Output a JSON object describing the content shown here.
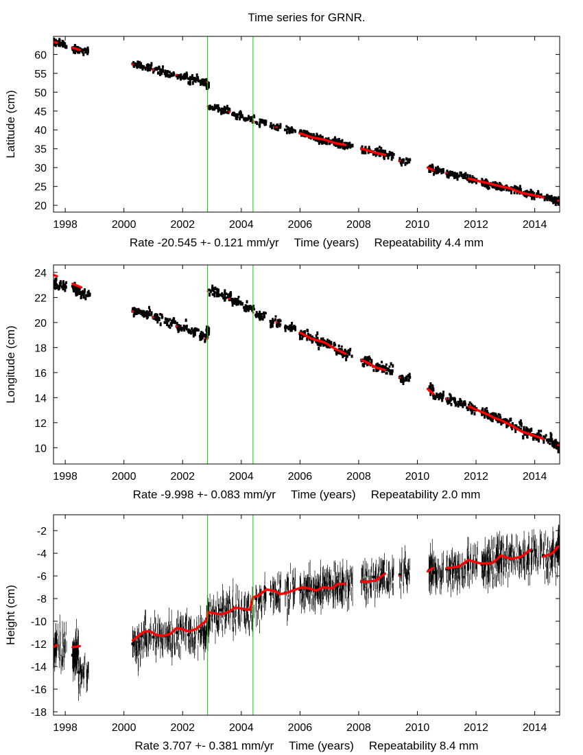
{
  "title": "Time series for GRNR.",
  "colors": {
    "data": "#000000",
    "model": "#ff0000",
    "breaks": "#00cc00",
    "frame": "#000000"
  },
  "chart_data": [
    {
      "type": "scatter",
      "ylabel": "Latitude (cm)",
      "xlabel": "Time (years)",
      "rate_text": "Rate -20.545 +- 0.121 mm/yr",
      "repeat_text": "Repeatability 4.4 mm",
      "xlim": [
        1997.6,
        2014.85
      ],
      "ylim": [
        18.2,
        64.8
      ],
      "xticks": [
        1998,
        2000,
        2002,
        2004,
        2006,
        2008,
        2010,
        2012,
        2014
      ],
      "yticks": [
        20,
        25,
        30,
        35,
        40,
        45,
        50,
        55,
        60
      ],
      "breaks": [
        2002.85,
        2004.4
      ],
      "series": [
        {
          "name": "observations",
          "x": [
            1997.6,
            1997.7,
            1998.25,
            1998.35,
            1998.45,
            2000.3,
            2000.6,
            2001.0,
            2001.4,
            2001.8,
            2002.2,
            2002.6,
            2002.82,
            2002.9,
            2003.3,
            2003.7,
            2004.1,
            2004.5,
            2005.0,
            2005.5,
            2006.0,
            2006.3,
            2006.6,
            2006.85,
            2007.2,
            2007.45,
            2008.1,
            2008.5,
            2008.85,
            2009.4,
            2010.4,
            2010.55,
            2011.0,
            2011.3,
            2011.7,
            2012.2,
            2012.4,
            2012.7,
            2012.85,
            2013.2,
            2013.6,
            2013.9,
            2014.3,
            2014.6,
            2014.8
          ],
          "values": [
            63.3,
            63.0,
            61.7,
            61.4,
            61.1,
            57.5,
            56.8,
            56.0,
            55.0,
            54.3,
            53.6,
            52.9,
            51.8,
            46.2,
            45.3,
            44.1,
            42.9,
            42.0,
            40.9,
            40.0,
            39.2,
            38.5,
            37.6,
            37.2,
            36.5,
            36.0,
            35.0,
            34.2,
            33.5,
            31.8,
            30.1,
            29.2,
            28.5,
            27.9,
            27.1,
            26.2,
            25.6,
            25.1,
            24.8,
            24.3,
            23.2,
            22.8,
            22.2,
            21.5,
            21.2
          ]
        },
        {
          "name": "model",
          "x": [
            1997.6,
            1997.72,
            1998.25,
            1998.5,
            2000.3,
            2001.0,
            2001.8,
            2002.84,
            2002.86,
            2003.6,
            2004.4,
            2005.2,
            2006.0,
            2006.4,
            2006.85,
            2007.2,
            2007.55,
            2008.1,
            2008.3,
            2008.6,
            2008.9,
            2009.4,
            2010.35,
            2010.55,
            2011.0,
            2011.75,
            2012.15,
            2012.45,
            2012.6,
            2012.85,
            2013.1,
            2013.2,
            2013.55,
            2013.95,
            2014.3,
            2014.8
          ],
          "values": [
            63.3,
            63.1,
            61.8,
            61.2,
            57.4,
            56.0,
            54.6,
            52.6,
            46.2,
            44.8,
            42.3,
            40.7,
            39.1,
            38.0,
            37.4,
            36.5,
            36.0,
            35.0,
            34.6,
            33.9,
            33.4,
            31.8,
            30.0,
            29.3,
            28.6,
            27.1,
            26.3,
            25.8,
            25.5,
            25.0,
            24.6,
            24.4,
            23.3,
            22.7,
            22.1,
            21.2
          ]
        }
      ]
    },
    {
      "type": "scatter",
      "ylabel": "Longitude (cm)",
      "xlabel": "Time (years)",
      "rate_text": "Rate -9.998 +- 0.083 mm/yr",
      "repeat_text": "Repeatability 2.0 mm",
      "xlim": [
        1997.6,
        2014.85
      ],
      "ylim": [
        8.7,
        24.6
      ],
      "xticks": [
        1998,
        2000,
        2002,
        2004,
        2006,
        2008,
        2010,
        2012,
        2014
      ],
      "yticks": [
        10,
        12,
        14,
        16,
        18,
        20,
        22,
        24
      ],
      "breaks": [
        2002.85,
        2004.4
      ],
      "series": [
        {
          "name": "observations",
          "x": [
            1997.6,
            1997.7,
            1998.25,
            1998.35,
            1998.5,
            2000.3,
            2000.6,
            2001.0,
            2001.4,
            2001.8,
            2002.2,
            2002.6,
            2002.82,
            2002.9,
            2003.3,
            2003.7,
            2004.1,
            2004.5,
            2005.0,
            2005.5,
            2006.0,
            2006.3,
            2006.6,
            2006.85,
            2007.2,
            2007.45,
            2008.1,
            2008.5,
            2008.85,
            2009.4,
            2010.4,
            2010.55,
            2011.0,
            2011.3,
            2011.7,
            2012.2,
            2012.4,
            2012.7,
            2012.85,
            2013.2,
            2013.6,
            2013.9,
            2014.3,
            2014.6,
            2014.8
          ],
          "values": [
            23.3,
            23.0,
            22.9,
            22.6,
            22.3,
            20.9,
            20.7,
            20.4,
            20.0,
            19.7,
            19.3,
            18.9,
            19.4,
            22.6,
            22.2,
            21.7,
            21.2,
            20.6,
            20.1,
            19.6,
            19.1,
            18.8,
            18.4,
            18.3,
            17.8,
            17.6,
            17.0,
            16.5,
            16.3,
            15.6,
            14.7,
            14.2,
            13.9,
            13.6,
            13.2,
            12.8,
            12.5,
            12.3,
            12.1,
            11.8,
            11.3,
            11.0,
            10.7,
            10.3,
            10.1
          ]
        },
        {
          "name": "model",
          "x": [
            1997.6,
            1997.72,
            1998.25,
            1998.55,
            2000.3,
            2001.0,
            2001.8,
            2002.84,
            2002.86,
            2003.6,
            2004.4,
            2005.2,
            2006.0,
            2006.4,
            2006.85,
            2007.2,
            2007.55,
            2008.1,
            2008.3,
            2008.6,
            2008.9,
            2009.4,
            2010.35,
            2010.55,
            2011.0,
            2011.75,
            2012.15,
            2012.45,
            2012.6,
            2012.85,
            2013.1,
            2013.2,
            2013.55,
            2013.95,
            2014.3,
            2014.8
          ],
          "values": [
            23.8,
            23.7,
            23.1,
            22.8,
            20.9,
            20.4,
            19.7,
            18.7,
            22.5,
            21.9,
            20.8,
            20.0,
            19.2,
            18.7,
            18.4,
            17.9,
            17.5,
            17.0,
            16.8,
            16.4,
            16.2,
            15.6,
            14.7,
            14.3,
            13.9,
            13.3,
            12.9,
            12.6,
            12.4,
            12.2,
            11.9,
            11.8,
            11.3,
            11.0,
            10.7,
            10.2
          ]
        }
      ]
    },
    {
      "type": "scatter",
      "ylabel": "Height (cm)",
      "xlabel": "Time (years)",
      "rate_text": "Rate 3.707 +- 0.381 mm/yr",
      "repeat_text": "Repeatability 8.4 mm",
      "xlim": [
        1997.6,
        2014.85
      ],
      "ylim": [
        -18.3,
        -0.6
      ],
      "xticks": [
        1998,
        2000,
        2002,
        2004,
        2006,
        2008,
        2010,
        2012,
        2014
      ],
      "yticks": [
        -2,
        -4,
        -6,
        -8,
        -10,
        -12,
        -14,
        -16,
        -18
      ],
      "breaks": [
        2002.85,
        2004.4
      ],
      "series": [
        {
          "name": "observations",
          "x": [
            1997.6,
            1997.7,
            1998.25,
            1998.35,
            1998.45,
            2000.3,
            2000.6,
            2001.0,
            2001.4,
            2001.8,
            2002.2,
            2002.6,
            2002.82,
            2002.9,
            2003.3,
            2003.7,
            2004.1,
            2004.5,
            2005.0,
            2005.5,
            2006.0,
            2006.3,
            2006.6,
            2006.85,
            2007.2,
            2007.45,
            2008.1,
            2008.5,
            2008.85,
            2009.4,
            2010.4,
            2010.55,
            2011.0,
            2011.3,
            2011.7,
            2012.2,
            2012.4,
            2012.7,
            2012.85,
            2013.2,
            2013.6,
            2013.9,
            2014.3,
            2014.6,
            2014.8
          ],
          "values": [
            -12.5,
            -12.0,
            -13.0,
            -12.5,
            -14.5,
            -12.0,
            -11.3,
            -11.4,
            -11.3,
            -11.0,
            -11.2,
            -10.9,
            -9.8,
            -9.5,
            -9.0,
            -9.1,
            -9.0,
            -8.0,
            -7.6,
            -7.5,
            -7.2,
            -7.3,
            -7.0,
            -6.6,
            -6.9,
            -6.7,
            -6.5,
            -6.1,
            -5.8,
            -5.9,
            -5.5,
            -5.7,
            -5.4,
            -5.3,
            -4.8,
            -5.0,
            -4.9,
            -4.4,
            -4.5,
            -4.5,
            -4.3,
            -3.8,
            -4.2,
            -4.0,
            -3.3
          ]
        },
        {
          "name": "model",
          "x": [
            1997.6,
            1997.72,
            1998.25,
            1998.5,
            2000.3,
            2000.5,
            2000.7,
            2000.9,
            2001.1,
            2001.35,
            2001.6,
            2001.8,
            2002.0,
            2002.2,
            2002.45,
            2002.65,
            2002.84,
            2002.86,
            2003.1,
            2003.3,
            2003.55,
            2003.8,
            2004.05,
            2004.3,
            2004.4,
            2004.6,
            2004.85,
            2005.1,
            2005.35,
            2005.55,
            2005.85,
            2006.1,
            2006.3,
            2006.55,
            2006.8,
            2007.1,
            2007.3,
            2007.55,
            2008.1,
            2008.3,
            2008.6,
            2008.9,
            2009.4,
            2010.35,
            2010.55,
            2011.0,
            2011.4,
            2011.75,
            2012.15,
            2012.45,
            2012.6,
            2012.85,
            2013.2,
            2013.55,
            2013.85,
            2014.3,
            2014.6,
            2014.8
          ],
          "values": [
            -12.3,
            -12.1,
            -12.3,
            -12.2,
            -11.7,
            -11.3,
            -10.9,
            -10.9,
            -11.2,
            -11.3,
            -11.1,
            -10.6,
            -10.7,
            -10.9,
            -10.7,
            -10.3,
            -9.9,
            -9.2,
            -9.3,
            -9.4,
            -9.2,
            -8.8,
            -8.9,
            -9.0,
            -7.9,
            -7.7,
            -7.2,
            -7.3,
            -7.6,
            -7.5,
            -7.2,
            -7.0,
            -7.1,
            -7.3,
            -7.0,
            -7.1,
            -6.7,
            -6.7,
            -6.5,
            -6.5,
            -6.4,
            -5.8,
            -6.0,
            -5.6,
            -5.3,
            -5.3,
            -5.2,
            -4.6,
            -4.9,
            -4.9,
            -4.8,
            -4.2,
            -4.5,
            -4.3,
            -3.7,
            -4.3,
            -4.0,
            -3.4
          ]
        }
      ]
    }
  ]
}
